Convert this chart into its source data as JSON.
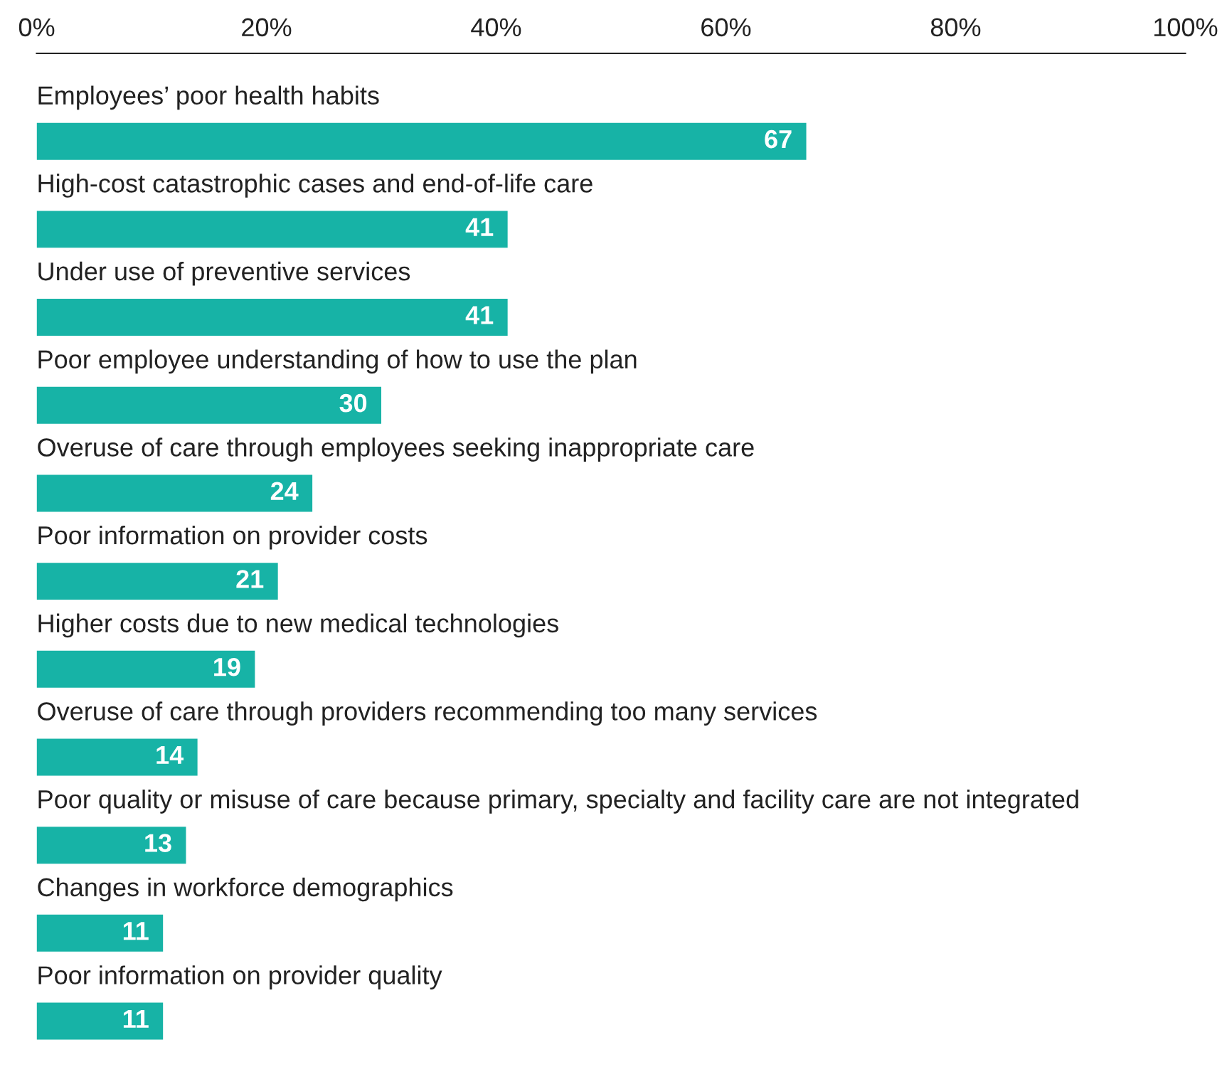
{
  "chart_data": {
    "type": "bar",
    "orientation": "horizontal",
    "categories": [
      "Employees’ poor health habits",
      "High-cost catastrophic cases and end-of-life care",
      "Under use of preventive services",
      "Poor employee understanding of how to use the plan",
      "Overuse of care through employees seeking inappropriate care",
      "Poor information on provider costs",
      "Higher costs due to new medical technologies",
      "Overuse of care through providers recommending too many services",
      "Poor quality or misuse of care because primary, specialty and facility care are not integrated",
      "Changes in workforce demographics",
      "Poor information on provider quality"
    ],
    "values": [
      67,
      41,
      41,
      30,
      24,
      21,
      19,
      14,
      13,
      11,
      11
    ],
    "color": "#17b3a6",
    "xlim": [
      0,
      100
    ],
    "xticks": [
      {
        "value": 0,
        "label": "0%"
      },
      {
        "value": 20,
        "label": "20%"
      },
      {
        "value": 40,
        "label": "40%"
      },
      {
        "value": 60,
        "label": "60%"
      },
      {
        "value": 80,
        "label": "80%"
      },
      {
        "value": 100,
        "label": "100%"
      }
    ],
    "data_labels": true,
    "grid": false,
    "legend": false
  }
}
